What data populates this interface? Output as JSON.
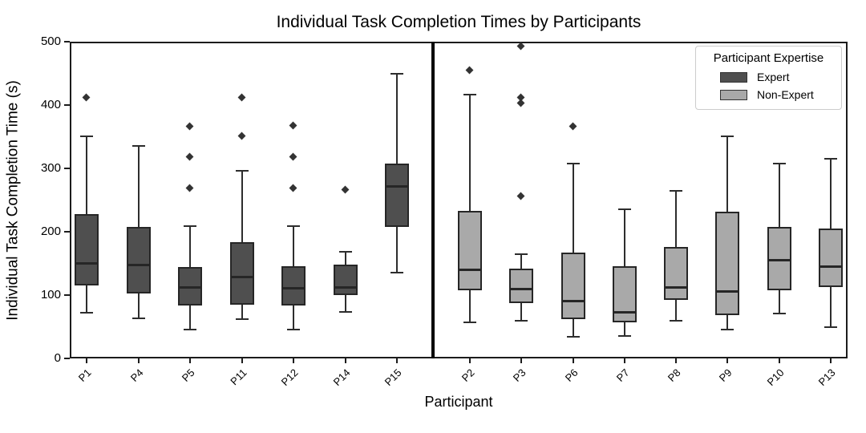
{
  "figure": {
    "background": "#ffffff"
  },
  "chart_data": {
    "type": "box",
    "title": "Individual Task Completion Times by Participants",
    "xlabel": "Participant",
    "ylabel": "Individual Task Completion Time (s)",
    "ylim": [
      0,
      500
    ],
    "yticks": [
      0,
      100,
      200,
      300,
      400,
      500
    ],
    "grid": false,
    "legend": {
      "title": "Participant Expertise",
      "position": "upper right",
      "entries": [
        {
          "label": "Expert",
          "color": "#4f4f4f"
        },
        {
          "label": "Non-Expert",
          "color": "#a9a9a9"
        }
      ]
    },
    "separator": {
      "after_category": "P15",
      "color": "#000000"
    },
    "colors": {
      "Expert": "#4f4f4f",
      "Non-Expert": "#a9a9a9",
      "edge": "#262626",
      "whisker": "#2d2d2d",
      "outlier": "#333333"
    },
    "boxes": [
      {
        "participant": "P1",
        "group": "Expert",
        "whislo": 72,
        "q1": 115,
        "median": 150,
        "q3": 228,
        "whishi": 351,
        "outliers": [
          411
        ]
      },
      {
        "participant": "P4",
        "group": "Expert",
        "whislo": 63,
        "q1": 102,
        "median": 148,
        "q3": 207,
        "whishi": 335,
        "outliers": []
      },
      {
        "participant": "P5",
        "group": "Expert",
        "whislo": 45,
        "q1": 84,
        "median": 112,
        "q3": 144,
        "whishi": 209,
        "outliers": [
          268,
          318,
          366
        ]
      },
      {
        "participant": "P11",
        "group": "Expert",
        "whislo": 62,
        "q1": 85,
        "median": 129,
        "q3": 184,
        "whishi": 296,
        "outliers": [
          351,
          412
        ]
      },
      {
        "participant": "P12",
        "group": "Expert",
        "whislo": 45,
        "q1": 83,
        "median": 111,
        "q3": 145,
        "whishi": 209,
        "outliers": [
          268,
          318,
          367
        ]
      },
      {
        "participant": "P14",
        "group": "Expert",
        "whislo": 73,
        "q1": 100,
        "median": 112,
        "q3": 148,
        "whishi": 168,
        "outliers": [
          266
        ]
      },
      {
        "participant": "P15",
        "group": "Expert",
        "whislo": 135,
        "q1": 207,
        "median": 272,
        "q3": 307,
        "whishi": 450,
        "outliers": []
      },
      {
        "participant": "P2",
        "group": "Non-Expert",
        "whislo": 57,
        "q1": 107,
        "median": 140,
        "q3": 233,
        "whishi": 417,
        "outliers": [
          455
        ]
      },
      {
        "participant": "P3",
        "group": "Non-Expert",
        "whislo": 60,
        "q1": 87,
        "median": 110,
        "q3": 142,
        "whishi": 165,
        "outliers": [
          256,
          402,
          412,
          492
        ]
      },
      {
        "participant": "P6",
        "group": "Non-Expert",
        "whislo": 34,
        "q1": 62,
        "median": 90,
        "q3": 167,
        "whishi": 307,
        "outliers": [
          366
        ]
      },
      {
        "participant": "P7",
        "group": "Non-Expert",
        "whislo": 35,
        "q1": 57,
        "median": 73,
        "q3": 145,
        "whishi": 235,
        "outliers": []
      },
      {
        "participant": "P8",
        "group": "Non-Expert",
        "whislo": 60,
        "q1": 93,
        "median": 112,
        "q3": 176,
        "whishi": 265,
        "outliers": []
      },
      {
        "participant": "P9",
        "group": "Non-Expert",
        "whislo": 46,
        "q1": 68,
        "median": 106,
        "q3": 232,
        "whishi": 351,
        "outliers": []
      },
      {
        "participant": "P10",
        "group": "Non-Expert",
        "whislo": 71,
        "q1": 108,
        "median": 155,
        "q3": 207,
        "whishi": 308,
        "outliers": []
      },
      {
        "participant": "P13",
        "group": "Non-Expert",
        "whislo": 50,
        "q1": 113,
        "median": 145,
        "q3": 205,
        "whishi": 315,
        "outliers": []
      }
    ]
  }
}
